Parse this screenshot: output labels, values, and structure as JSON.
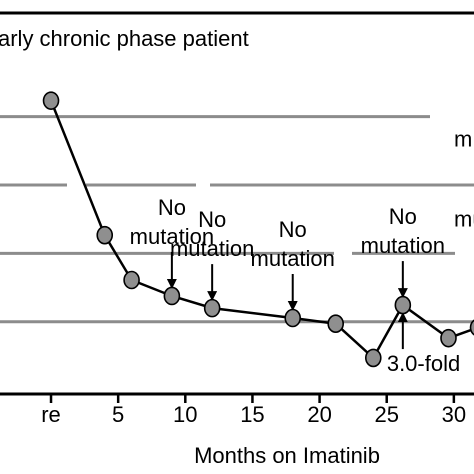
{
  "chart_data": {
    "type": "line",
    "title": "arly chronic phase patient",
    "xlabel": "Months on Imatinib",
    "ylabel": "",
    "xlim": [
      -3.8,
      31.5
    ],
    "ylim": [
      0,
      10
    ],
    "x_ticks": [
      {
        "value": 0,
        "label": "re"
      },
      {
        "value": 5,
        "label": "5"
      },
      {
        "value": 10,
        "label": "10"
      },
      {
        "value": 15,
        "label": "15"
      },
      {
        "value": 20,
        "label": "20"
      },
      {
        "value": 25,
        "label": "25"
      },
      {
        "value": 30,
        "label": "30"
      }
    ],
    "gridlines_y": [
      7.3,
      5.5,
      3.7,
      1.9
    ],
    "series": [
      {
        "values": [
          {
            "x": 0,
            "y": 7.72
          },
          {
            "x": 4,
            "y": 4.18
          },
          {
            "x": 6,
            "y": 3.0
          },
          {
            "x": 9,
            "y": 2.58
          },
          {
            "x": 12,
            "y": 2.26
          },
          {
            "x": 18,
            "y": 2.0
          },
          {
            "x": 21.2,
            "y": 1.85
          },
          {
            "x": 24,
            "y": 0.95
          },
          {
            "x": 26.2,
            "y": 2.34
          },
          {
            "x": 29.6,
            "y": 1.47
          },
          {
            "x": 31.8,
            "y": 1.75
          }
        ]
      }
    ],
    "annotations": [
      {
        "lines": [
          "No",
          "mutation"
        ],
        "x": 9,
        "y": 2.58,
        "arrow": "down"
      },
      {
        "lines": [
          "No",
          "mutation"
        ],
        "x": 12,
        "y": 2.26,
        "arrow": "down"
      },
      {
        "lines": [
          "No",
          "mutation"
        ],
        "x": 18,
        "y": 2.0,
        "arrow": "down"
      },
      {
        "lines": [
          "No",
          "mutation"
        ],
        "x": 26.2,
        "y": 2.34,
        "arrow": "down"
      },
      {
        "lines": [
          "3.0-fold"
        ],
        "x": 26.2,
        "y": 2.34,
        "arrow": "up"
      },
      {
        "lines": [
          "m"
        ],
        "x": 31.5,
        "y": 7.3,
        "arrow": "none"
      },
      {
        "lines": [
          "mu"
        ],
        "x": 31.5,
        "y": 5.2,
        "arrow": "none"
      }
    ]
  }
}
